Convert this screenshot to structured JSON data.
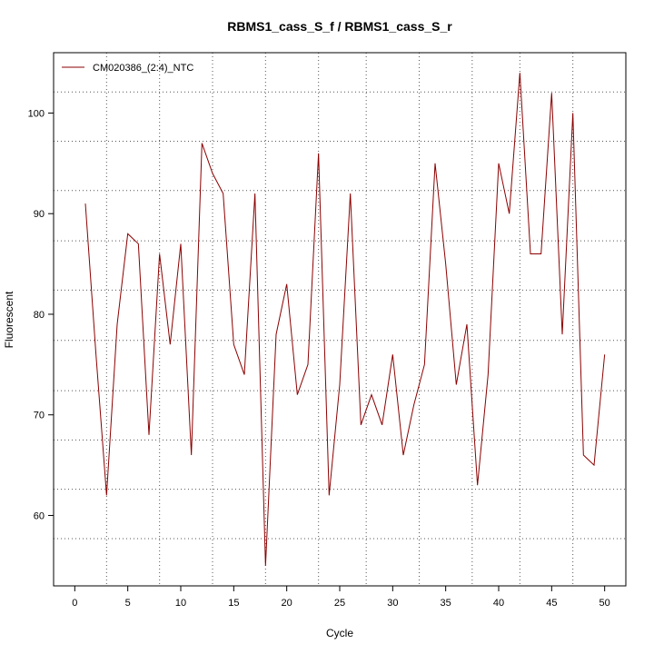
{
  "chart_data": {
    "type": "line",
    "title": "RBMS1_cass_S_f / RBMS1_cass_S_r",
    "xlabel": "Cycle",
    "ylabel": "Fluorescent",
    "xlim": [
      -2,
      52
    ],
    "ylim": [
      53,
      106
    ],
    "xticks": [
      0,
      5,
      10,
      15,
      20,
      25,
      30,
      35,
      40,
      45,
      50
    ],
    "yticks": [
      60,
      70,
      80,
      90,
      100
    ],
    "grid": true,
    "grid_x": [
      3,
      8,
      13,
      18,
      23,
      27.5,
      32.5,
      37.5,
      42,
      47
    ],
    "grid_y": [
      57.7,
      62.6,
      67.5,
      72.4,
      77.4,
      82.4,
      87.3,
      92.3,
      97.2,
      102.1
    ],
    "legend": "top-left",
    "colors": {
      "series": "#8B0000",
      "grid": "#555555",
      "axis": "#000000"
    },
    "series": [
      {
        "name": "CM020386_(2:4)_NTC",
        "x": [
          1,
          2,
          3,
          4,
          5,
          6,
          7,
          8,
          9,
          10,
          11,
          12,
          13,
          14,
          15,
          16,
          17,
          18,
          19,
          20,
          21,
          22,
          23,
          24,
          25,
          26,
          27,
          28,
          29,
          30,
          31,
          32,
          33,
          34,
          35,
          36,
          37,
          38,
          39,
          40,
          41,
          42,
          43,
          44,
          45,
          46,
          47,
          48,
          49,
          50
        ],
        "values": [
          91,
          76,
          62,
          79,
          88,
          87,
          68,
          86,
          77,
          87,
          66,
          97,
          94,
          92,
          77,
          74,
          92,
          55,
          78,
          83,
          72,
          75,
          96,
          62,
          73,
          92,
          69,
          72,
          69,
          76,
          66,
          71,
          75,
          95,
          85,
          73,
          79,
          63,
          74,
          95,
          90,
          104,
          86,
          86,
          102,
          78,
          100,
          66,
          65,
          76
        ]
      }
    ]
  }
}
